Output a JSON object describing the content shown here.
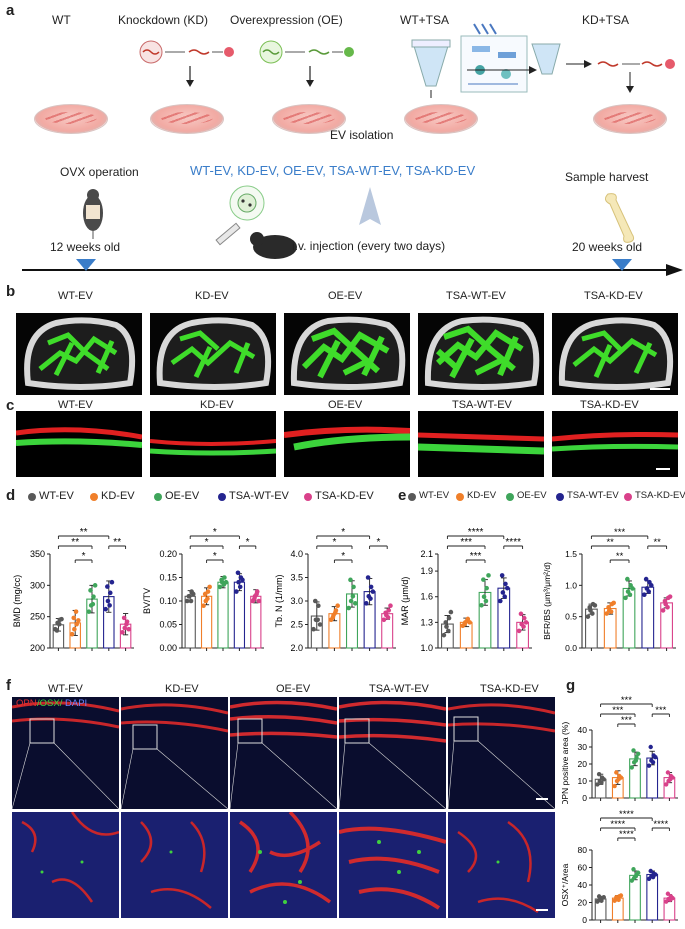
{
  "panel_letters": {
    "a": "a",
    "b": "b",
    "c": "c",
    "d": "d",
    "e": "e",
    "f": "f",
    "g": "g"
  },
  "panel_a": {
    "groups": [
      "WT",
      "Knockdown (KD)",
      "Overexpression (OE)",
      "WT+TSA",
      "KD+TSA"
    ],
    "ev_isolation": "EV isolation",
    "ev_groups": "WT-EV, KD-EV, OE-EV, TSA-WT-EV, TSA-KD-EV",
    "ovx": "OVX operation",
    "harvest": "Sample harvest",
    "injection": "i.v. injection (every two days)",
    "age_start": "12 weeks old",
    "age_end": "20 weeks old",
    "accent": "#3a7dc9"
  },
  "group_labels": [
    "WT-EV",
    "KD-EV",
    "OE-EV",
    "TSA-WT-EV",
    "TSA-KD-EV"
  ],
  "colors": {
    "WT-EV": "#595959",
    "KD-EV": "#f07f2a",
    "OE-EV": "#3fa55b",
    "TSA-WT-EV": "#24248f",
    "TSA-KD-EV": "#d9418a"
  },
  "panel_f": {
    "stain_opn": "OPN",
    "stain_osx": "/OSX/",
    "stain_dapi": "DAPI"
  },
  "chart_data": [
    {
      "id": "BMD",
      "type": "scatter_bar",
      "ylabel": "BMD (mg/cc)",
      "ylim": [
        200,
        350
      ],
      "yticks": [
        "200",
        "250",
        "300",
        "350"
      ],
      "categories": [
        "WT-EV",
        "KD-EV",
        "OE-EV",
        "TSA-WT-EV",
        "TSA-KD-EV"
      ],
      "values": [
        237,
        240,
        278,
        282,
        238
      ],
      "errors": [
        10,
        20,
        22,
        25,
        17
      ],
      "points": [
        [
          230,
          240,
          245,
          228,
          238,
          246
        ],
        [
          222,
          230,
          238,
          248,
          258,
          244
        ],
        [
          258,
          268,
          282,
          292,
          270,
          300
        ],
        [
          262,
          275,
          288,
          298,
          268,
          305
        ],
        [
          225,
          232,
          242,
          248,
          238,
          230
        ]
      ],
      "significance": [
        {
          "from": 0,
          "to": 3,
          "label": "**"
        },
        {
          "from": 0,
          "to": 2,
          "label": "**"
        },
        {
          "from": 1,
          "to": 2,
          "label": "*"
        },
        {
          "from": 3,
          "to": 4,
          "label": "**"
        }
      ]
    },
    {
      "id": "BVTV",
      "type": "scatter_bar",
      "ylabel": "BV/TV",
      "ylim": [
        0,
        0.2
      ],
      "yticks": [
        "0.00",
        "0.05",
        "0.10",
        "0.15",
        "0.20"
      ],
      "categories": [
        "WT-EV",
        "KD-EV",
        "OE-EV",
        "TSA-WT-EV",
        "TSA-KD-EV"
      ],
      "values": [
        0.11,
        0.11,
        0.14,
        0.14,
        0.11
      ],
      "errors": [
        0.012,
        0.018,
        0.012,
        0.018,
        0.014
      ],
      "points": [
        [
          0.1,
          0.11,
          0.12,
          0.11,
          0.1,
          0.115
        ],
        [
          0.09,
          0.1,
          0.12,
          0.115,
          0.105,
          0.13
        ],
        [
          0.13,
          0.14,
          0.15,
          0.145,
          0.135,
          0.14
        ],
        [
          0.12,
          0.14,
          0.15,
          0.16,
          0.13,
          0.145
        ],
        [
          0.1,
          0.11,
          0.12,
          0.105,
          0.115,
          0.1
        ]
      ],
      "significance": [
        {
          "from": 0,
          "to": 3,
          "label": "*"
        },
        {
          "from": 0,
          "to": 2,
          "label": "*"
        },
        {
          "from": 1,
          "to": 2,
          "label": "*"
        },
        {
          "from": 3,
          "to": 4,
          "label": "*"
        }
      ]
    },
    {
      "id": "TbN",
      "type": "scatter_bar",
      "ylabel": "Tb. N (1/mm)",
      "ylim": [
        2.0,
        4.0
      ],
      "yticks": [
        "2.0",
        "2.5",
        "3.0",
        "3.5",
        "4.0"
      ],
      "categories": [
        "WT-EV",
        "KD-EV",
        "OE-EV",
        "TSA-WT-EV",
        "TSA-KD-EV"
      ],
      "values": [
        2.68,
        2.73,
        3.15,
        3.2,
        2.73
      ],
      "errors": [
        0.3,
        0.15,
        0.28,
        0.28,
        0.12
      ],
      "points": [
        [
          2.4,
          2.6,
          2.9,
          3.0,
          2.6,
          2.5
        ],
        [
          2.6,
          2.7,
          2.8,
          2.65,
          2.75,
          2.9
        ],
        [
          2.85,
          3.0,
          3.3,
          3.45,
          3.1,
          2.95
        ],
        [
          2.95,
          3.1,
          3.3,
          3.5,
          3.05,
          3.2
        ],
        [
          2.6,
          2.7,
          2.8,
          2.75,
          2.65,
          2.9
        ]
      ],
      "significance": [
        {
          "from": 0,
          "to": 3,
          "label": "*"
        },
        {
          "from": 0,
          "to": 2,
          "label": "*"
        },
        {
          "from": 1,
          "to": 2,
          "label": "*"
        },
        {
          "from": 3,
          "to": 4,
          "label": "*"
        }
      ]
    },
    {
      "id": "MAR",
      "type": "scatter_bar",
      "ylabel": "MAR (μm/d)",
      "ylim": [
        1.0,
        2.1
      ],
      "yticks": [
        "1.0",
        "1.3",
        "1.6",
        "1.9",
        "2.1"
      ],
      "categories": [
        "WT-EV",
        "KD-EV",
        "OE-EV",
        "TSA-WT-EV",
        "TSA-KD-EV"
      ],
      "values": [
        1.28,
        1.3,
        1.65,
        1.7,
        1.3
      ],
      "errors": [
        0.1,
        0.05,
        0.15,
        0.12,
        0.09
      ],
      "points": [
        [
          1.15,
          1.25,
          1.35,
          1.3,
          1.2,
          1.42
        ],
        [
          1.26,
          1.3,
          1.34,
          1.28,
          1.32,
          1.3
        ],
        [
          1.5,
          1.6,
          1.7,
          1.8,
          1.55,
          1.85
        ],
        [
          1.55,
          1.65,
          1.75,
          1.85,
          1.6,
          1.7
        ],
        [
          1.2,
          1.28,
          1.35,
          1.4,
          1.25,
          1.3
        ]
      ],
      "significance": [
        {
          "from": 0,
          "to": 3,
          "label": "****"
        },
        {
          "from": 0,
          "to": 2,
          "label": "***"
        },
        {
          "from": 1,
          "to": 2,
          "label": "***"
        },
        {
          "from": 3,
          "to": 4,
          "label": "****"
        }
      ]
    },
    {
      "id": "BFR",
      "type": "scatter_bar",
      "ylabel": "BFR/BS (μm³/μm²/d)",
      "ylim": [
        0.0,
        1.5
      ],
      "yticks": [
        "0.0",
        "0.5",
        "1.0",
        "1.5"
      ],
      "categories": [
        "WT-EV",
        "KD-EV",
        "OE-EV",
        "TSA-WT-EV",
        "TSA-KD-EV"
      ],
      "values": [
        0.62,
        0.63,
        0.95,
        0.97,
        0.72
      ],
      "errors": [
        0.08,
        0.09,
        0.12,
        0.1,
        0.08
      ],
      "points": [
        [
          0.5,
          0.6,
          0.7,
          0.65,
          0.55,
          0.68
        ],
        [
          0.55,
          0.6,
          0.7,
          0.65,
          0.58,
          0.72
        ],
        [
          0.8,
          0.9,
          1.0,
          1.1,
          0.85,
          0.95
        ],
        [
          0.85,
          0.95,
          1.05,
          1.1,
          0.9,
          1.0
        ],
        [
          0.6,
          0.7,
          0.8,
          0.75,
          0.65,
          0.82
        ]
      ],
      "significance": [
        {
          "from": 0,
          "to": 3,
          "label": "***"
        },
        {
          "from": 0,
          "to": 2,
          "label": "**"
        },
        {
          "from": 1,
          "to": 2,
          "label": "**"
        },
        {
          "from": 3,
          "to": 4,
          "label": "**"
        }
      ]
    },
    {
      "id": "OPN",
      "type": "scatter_bar",
      "ylabel": "OPN positive area (%)",
      "ylim": [
        0,
        40
      ],
      "yticks": [
        "0",
        "10",
        "20",
        "30",
        "40"
      ],
      "categories": [
        "WT-EV",
        "KD-EV",
        "OE-EV",
        "TSA-WT-EV",
        "TSA-KD-EV"
      ],
      "values": [
        11,
        12,
        23,
        23.5,
        12
      ],
      "errors": [
        3,
        4,
        4,
        4,
        3
      ],
      "points": [
        [
          8,
          10,
          12,
          14,
          9,
          11
        ],
        [
          7,
          10,
          13,
          15,
          11,
          12
        ],
        [
          18,
          21,
          24,
          28,
          22,
          26
        ],
        [
          19,
          22,
          25,
          30,
          21,
          24
        ],
        [
          8,
          10,
          13,
          15,
          11,
          12
        ]
      ],
      "significance": [
        {
          "from": 0,
          "to": 3,
          "label": "***"
        },
        {
          "from": 0,
          "to": 2,
          "label": "***"
        },
        {
          "from": 1,
          "to": 2,
          "label": "***"
        },
        {
          "from": 3,
          "to": 4,
          "label": "***"
        }
      ]
    },
    {
      "id": "OSX",
      "type": "scatter_bar",
      "ylabel": "OSX⁺/Area",
      "ylim": [
        0,
        80
      ],
      "yticks": [
        "0",
        "20",
        "40",
        "60",
        "80"
      ],
      "categories": [
        "WT-EV",
        "KD-EV",
        "OE-EV",
        "TSA-WT-EV",
        "TSA-KD-EV"
      ],
      "values": [
        24,
        25,
        51,
        52,
        25
      ],
      "errors": [
        3,
        3,
        5,
        4,
        4
      ],
      "points": [
        [
          21,
          23,
          25,
          27,
          22,
          26
        ],
        [
          22,
          24,
          27,
          26,
          23,
          28
        ],
        [
          45,
          48,
          52,
          58,
          50,
          54
        ],
        [
          47,
          50,
          53,
          56,
          49,
          52
        ],
        [
          21,
          24,
          27,
          30,
          23,
          25
        ]
      ],
      "significance": [
        {
          "from": 0,
          "to": 3,
          "label": "****"
        },
        {
          "from": 0,
          "to": 2,
          "label": "****"
        },
        {
          "from": 1,
          "to": 2,
          "label": "****"
        },
        {
          "from": 3,
          "to": 4,
          "label": "****"
        }
      ]
    }
  ]
}
